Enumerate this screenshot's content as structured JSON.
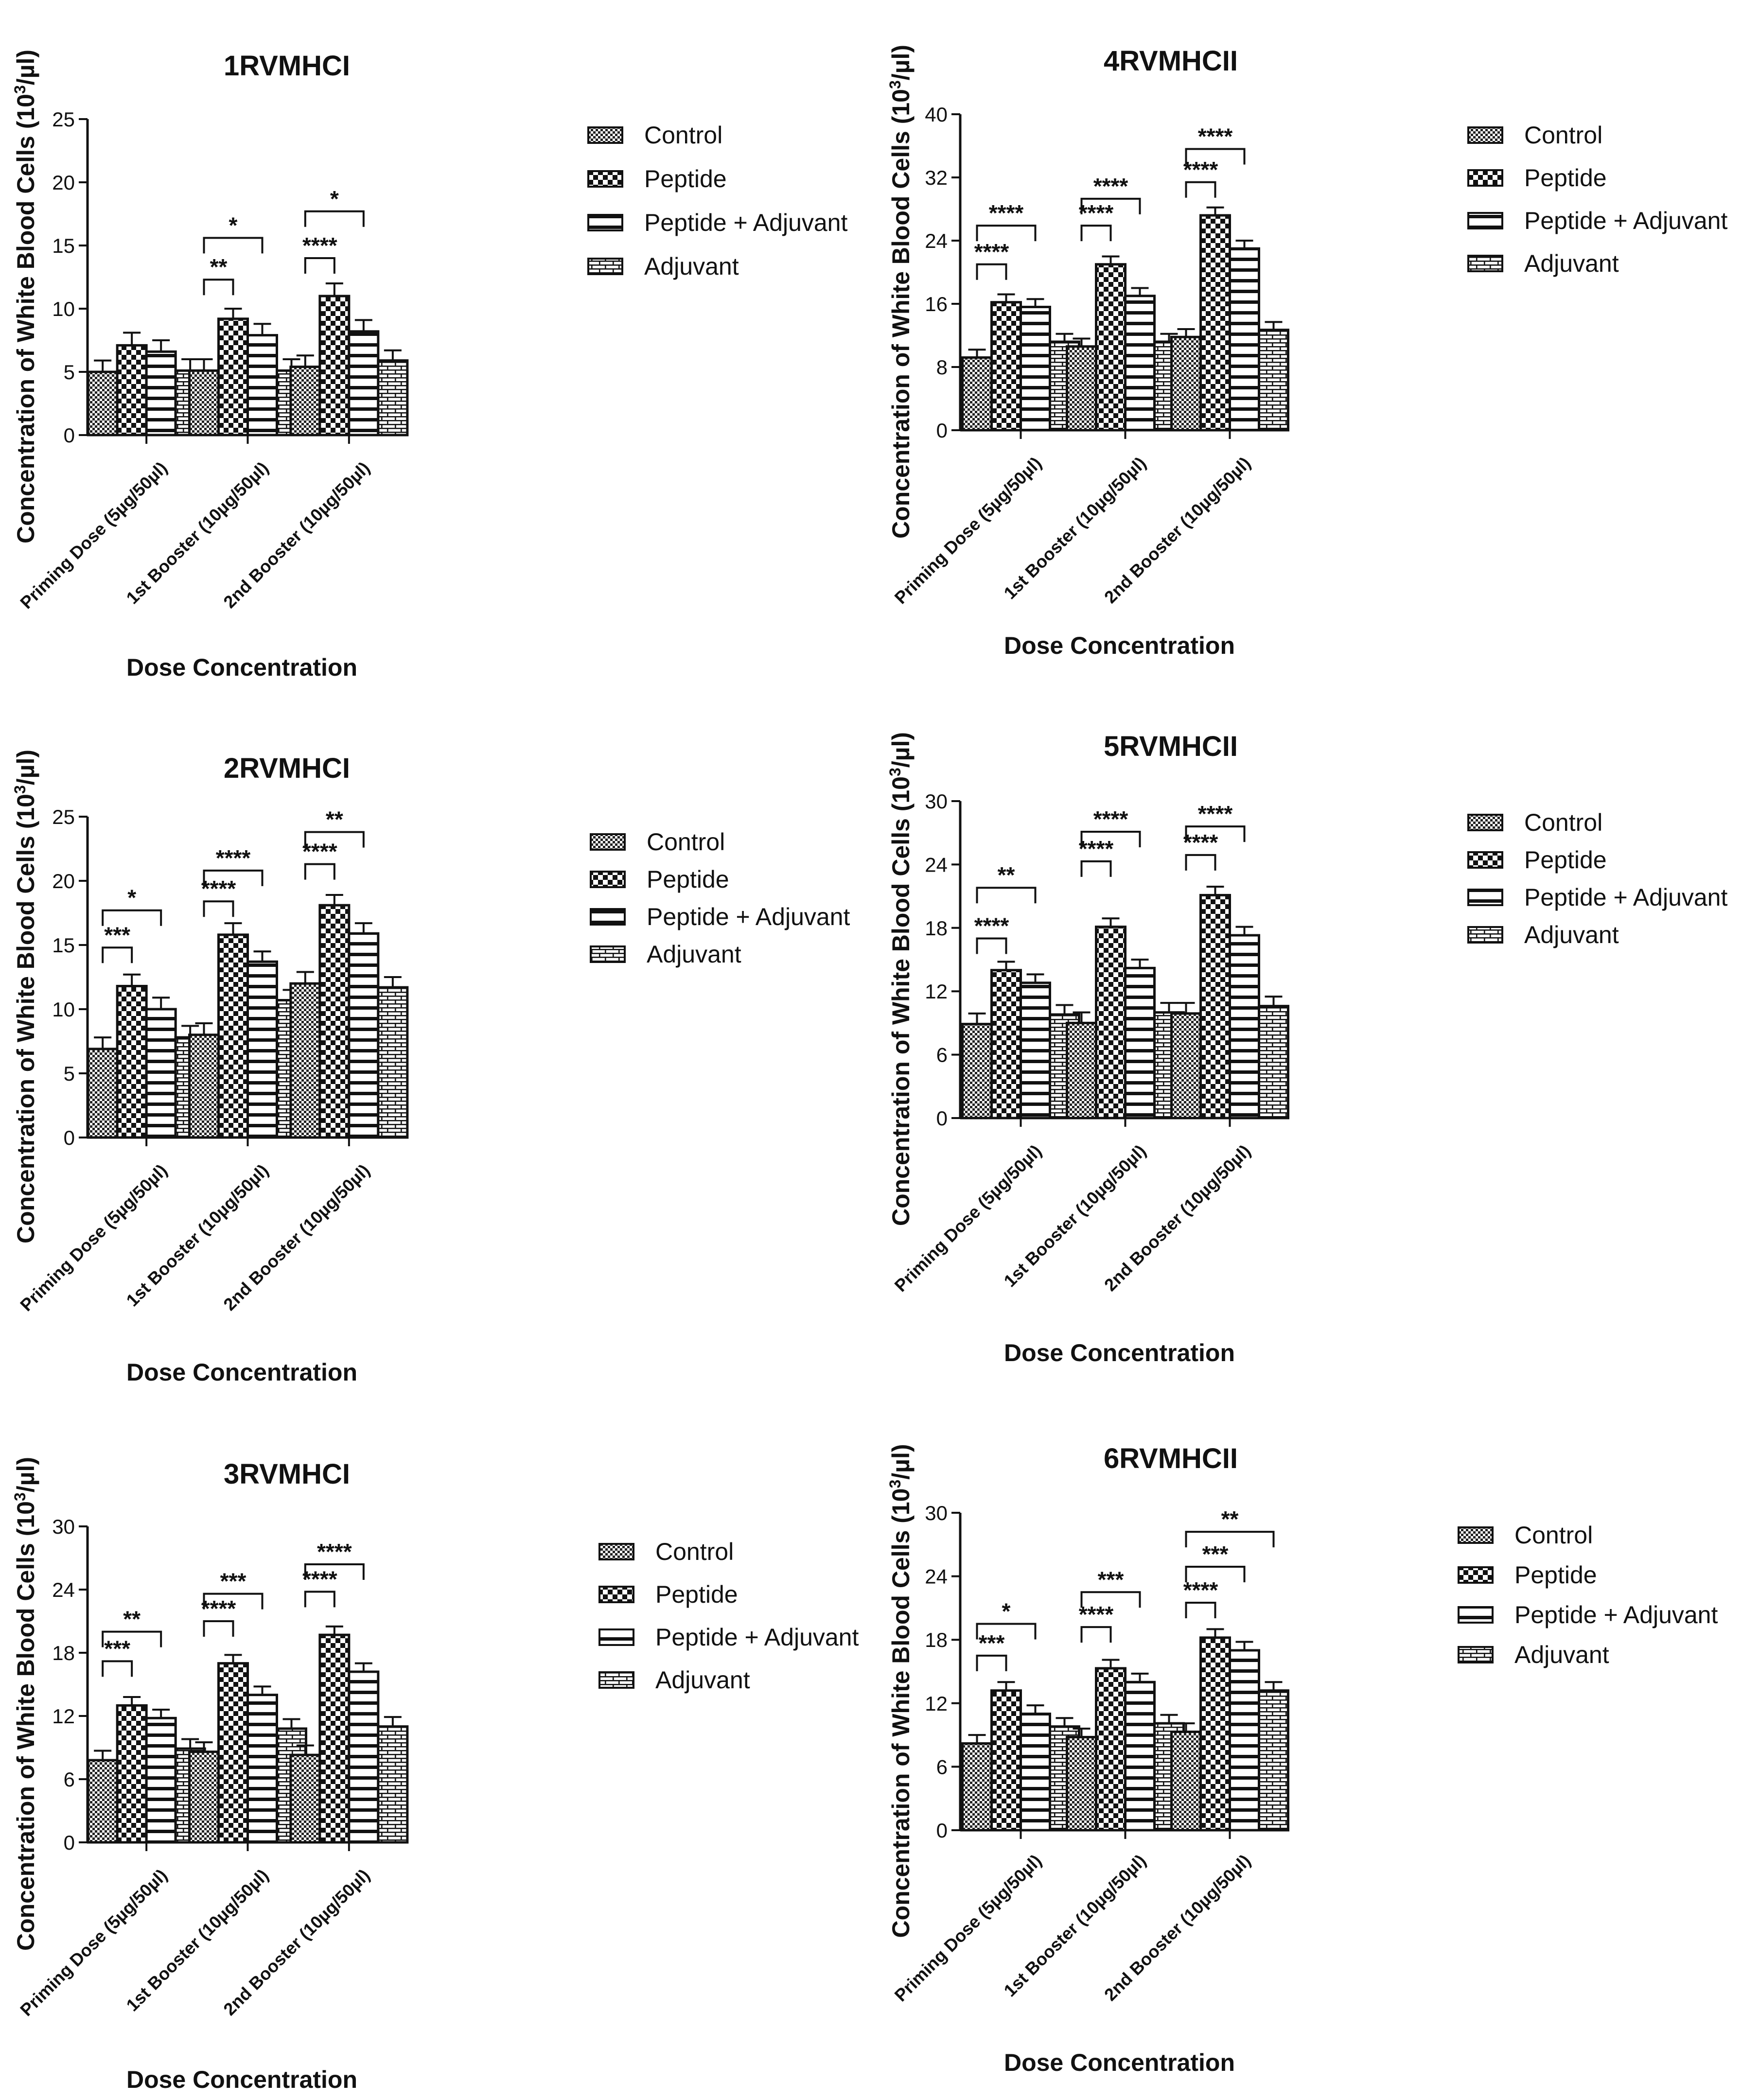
{
  "figure": {
    "legend_entries": [
      "Control",
      "Peptide",
      "Peptide + Adjuvant",
      "Adjuvant"
    ],
    "categories": [
      "Priming Dose (5µg/50µl)",
      "1st Booster (10µg/50µl)",
      "2nd Booster (10µg/50µl)"
    ],
    "ylabel_main": "Concentration of White Blood Cells (10",
    "ylabel_sup": "3",
    "ylabel_tail": "/µl)",
    "xlabel": "Dose  Concentration",
    "colors": {
      "axis": "#111111",
      "bar_fill": "#ffffff",
      "pattern": "#111111"
    }
  },
  "chart_data": [
    {
      "type": "bar",
      "title": "1RVMHCI",
      "xlabel": "Dose  Concentration",
      "ylabel": "Concentration of White Blood Cells (10³/µl)",
      "ylim": [
        0,
        25
      ],
      "yticks": [
        0,
        5,
        10,
        15,
        20,
        25
      ],
      "categories": [
        "Priming Dose (5µg/50µl)",
        "1st Booster (10µg/50µl)",
        "2nd Booster (10µg/50µl)"
      ],
      "series": [
        {
          "name": "Control",
          "values": [
            5.0,
            5.1,
            5.4
          ],
          "errors": [
            0.9,
            0.9,
            0.9
          ]
        },
        {
          "name": "Peptide",
          "values": [
            7.1,
            9.2,
            11.0
          ],
          "errors": [
            1.0,
            0.8,
            1.0
          ]
        },
        {
          "name": "Peptide + Adjuvant",
          "values": [
            6.6,
            7.9,
            8.2
          ],
          "errors": [
            0.9,
            0.9,
            0.9
          ]
        },
        {
          "name": "Adjuvant",
          "values": [
            5.1,
            5.1,
            5.9
          ],
          "errors": [
            0.9,
            0.9,
            0.8
          ]
        }
      ],
      "significance": [
        {
          "group": 1,
          "from": 0,
          "to": 1,
          "value": 12.3,
          "label": "**"
        },
        {
          "group": 1,
          "from": 0,
          "to": 2,
          "value": 15.6,
          "label": "*"
        },
        {
          "group": 2,
          "from": 0,
          "to": 1,
          "value": 14.0,
          "label": "****"
        },
        {
          "group": 2,
          "from": 0,
          "to": 2,
          "value": 17.7,
          "label": "*"
        }
      ]
    },
    {
      "type": "bar",
      "title": "4RVMHCII",
      "xlabel": "Dose  Concentration",
      "ylabel": "Concentration of White Blood Cells (10³/µl)",
      "ylim": [
        0,
        40
      ],
      "yticks": [
        0,
        8,
        16,
        24,
        32,
        40
      ],
      "categories": [
        "Priming Dose (5µg/50µl)",
        "1st Booster (10µg/50µl)",
        "2nd Booster (10µg/50µl)"
      ],
      "series": [
        {
          "name": "Control",
          "values": [
            9.2,
            10.6,
            11.8
          ],
          "errors": [
            1.0,
            1.0,
            1.0
          ]
        },
        {
          "name": "Peptide",
          "values": [
            16.2,
            21.0,
            27.2
          ],
          "errors": [
            1.0,
            1.0,
            1.0
          ]
        },
        {
          "name": "Peptide + Adjuvant",
          "values": [
            15.6,
            17.0,
            23.0
          ],
          "errors": [
            1.0,
            1.0,
            1.0
          ]
        },
        {
          "name": "Adjuvant",
          "values": [
            11.2,
            11.2,
            12.7
          ],
          "errors": [
            1.0,
            1.0,
            1.0
          ]
        }
      ],
      "significance": [
        {
          "group": 0,
          "from": 0,
          "to": 1,
          "value": 21.0,
          "label": "****"
        },
        {
          "group": 0,
          "from": 0,
          "to": 2,
          "value": 25.9,
          "label": "****"
        },
        {
          "group": 1,
          "from": 0,
          "to": 1,
          "value": 25.9,
          "label": "****"
        },
        {
          "group": 1,
          "from": 0,
          "to": 2,
          "value": 29.3,
          "label": "****"
        },
        {
          "group": 2,
          "from": 0,
          "to": 1,
          "value": 31.4,
          "label": "****"
        },
        {
          "group": 2,
          "from": 0,
          "to": 2,
          "value": 35.6,
          "label": "****"
        }
      ]
    },
    {
      "type": "bar",
      "title": "2RVMHCI",
      "xlabel": "Dose  Concentration",
      "ylabel": "Concentration of White Blood Cells (10³/µl)",
      "ylim": [
        0,
        25
      ],
      "yticks": [
        0,
        5,
        10,
        15,
        20,
        25
      ],
      "categories": [
        "Priming Dose (5µg/50µl)",
        "1st Booster (10µg/50µl)",
        "2nd Booster (10µg/50µl)"
      ],
      "series": [
        {
          "name": "Control",
          "values": [
            6.9,
            8.0,
            12.0
          ],
          "errors": [
            0.9,
            0.9,
            0.9
          ]
        },
        {
          "name": "Peptide",
          "values": [
            11.8,
            15.8,
            18.1
          ],
          "errors": [
            0.9,
            0.9,
            0.8
          ]
        },
        {
          "name": "Peptide + Adjuvant",
          "values": [
            10.0,
            13.7,
            15.9
          ],
          "errors": [
            0.9,
            0.8,
            0.8
          ]
        },
        {
          "name": "Adjuvant",
          "values": [
            7.8,
            10.7,
            11.7
          ],
          "errors": [
            0.9,
            0.8,
            0.8
          ]
        }
      ],
      "significance": [
        {
          "group": 0,
          "from": 0,
          "to": 1,
          "value": 14.8,
          "label": "***"
        },
        {
          "group": 0,
          "from": 0,
          "to": 2,
          "value": 17.7,
          "label": "*"
        },
        {
          "group": 1,
          "from": 0,
          "to": 1,
          "value": 18.4,
          "label": "****"
        },
        {
          "group": 1,
          "from": 0,
          "to": 2,
          "value": 20.8,
          "label": "****"
        },
        {
          "group": 2,
          "from": 0,
          "to": 1,
          "value": 21.3,
          "label": "****"
        },
        {
          "group": 2,
          "from": 0,
          "to": 2,
          "value": 23.8,
          "label": "**"
        }
      ]
    },
    {
      "type": "bar",
      "title": "5RVMHCII",
      "xlabel": "Dose  Concentration",
      "ylabel": "Concentration of White Blood Cells (10³/µl)",
      "ylim": [
        0,
        30
      ],
      "yticks": [
        0,
        6,
        12,
        18,
        24,
        30
      ],
      "categories": [
        "Priming Dose (5µg/50µl)",
        "1st Booster (10µg/50µl)",
        "2nd Booster (10µg/50µl)"
      ],
      "series": [
        {
          "name": "Control",
          "values": [
            8.9,
            9.0,
            9.9
          ],
          "errors": [
            1.0,
            1.0,
            1.0
          ]
        },
        {
          "name": "Peptide",
          "values": [
            14.0,
            18.1,
            21.1
          ],
          "errors": [
            0.8,
            0.8,
            0.8
          ]
        },
        {
          "name": "Peptide + Adjuvant",
          "values": [
            12.8,
            14.2,
            17.3
          ],
          "errors": [
            0.8,
            0.8,
            0.8
          ]
        },
        {
          "name": "Adjuvant",
          "values": [
            9.8,
            10.0,
            10.6
          ],
          "errors": [
            0.9,
            0.9,
            0.9
          ]
        }
      ],
      "significance": [
        {
          "group": 0,
          "from": 0,
          "to": 1,
          "value": 17.0,
          "label": "****"
        },
        {
          "group": 0,
          "from": 0,
          "to": 2,
          "value": 21.8,
          "label": "**"
        },
        {
          "group": 1,
          "from": 0,
          "to": 1,
          "value": 24.3,
          "label": "****"
        },
        {
          "group": 1,
          "from": 0,
          "to": 2,
          "value": 27.1,
          "label": "****"
        },
        {
          "group": 2,
          "from": 0,
          "to": 1,
          "value": 24.9,
          "label": "****"
        },
        {
          "group": 2,
          "from": 0,
          "to": 2,
          "value": 27.6,
          "label": "****"
        }
      ]
    },
    {
      "type": "bar",
      "title": "3RVMHCI",
      "xlabel": "Dose  Concentration",
      "ylabel": "Concentration of White Blood Cells (10³/µl)",
      "ylim": [
        0,
        30
      ],
      "yticks": [
        0,
        6,
        12,
        18,
        24,
        30
      ],
      "categories": [
        "Priming Dose (5µg/50µl)",
        "1st Booster (10µg/50µl)",
        "2nd Booster (10µg/50µl)"
      ],
      "series": [
        {
          "name": "Control",
          "values": [
            7.8,
            8.6,
            8.3
          ],
          "errors": [
            0.9,
            0.9,
            0.9
          ]
        },
        {
          "name": "Peptide",
          "values": [
            13.0,
            17.0,
            19.7
          ],
          "errors": [
            0.8,
            0.8,
            0.8
          ]
        },
        {
          "name": "Peptide + Adjuvant",
          "values": [
            11.8,
            14.0,
            16.2
          ],
          "errors": [
            0.8,
            0.8,
            0.8
          ]
        },
        {
          "name": "Adjuvant",
          "values": [
            8.9,
            10.8,
            11.0
          ],
          "errors": [
            0.9,
            0.9,
            0.9
          ]
        }
      ],
      "significance": [
        {
          "group": 0,
          "from": 0,
          "to": 1,
          "value": 17.2,
          "label": "***"
        },
        {
          "group": 0,
          "from": 0,
          "to": 2,
          "value": 20.0,
          "label": "**"
        },
        {
          "group": 1,
          "from": 0,
          "to": 1,
          "value": 21.0,
          "label": "****"
        },
        {
          "group": 1,
          "from": 0,
          "to": 2,
          "value": 23.6,
          "label": "***"
        },
        {
          "group": 2,
          "from": 0,
          "to": 1,
          "value": 23.8,
          "label": "****"
        },
        {
          "group": 2,
          "from": 0,
          "to": 2,
          "value": 26.4,
          "label": "****"
        }
      ]
    },
    {
      "type": "bar",
      "title": "6RVMHCII",
      "xlabel": "Dose  Concentration",
      "ylabel": "Concentration of White Blood Cells (10³/µl)",
      "ylim": [
        0,
        30
      ],
      "yticks": [
        0,
        6,
        12,
        18,
        24,
        30
      ],
      "categories": [
        "Priming Dose (5µg/50µl)",
        "1st Booster (10µg/50µl)",
        "2nd Booster (10µg/50µl)"
      ],
      "series": [
        {
          "name": "Control",
          "values": [
            8.2,
            8.8,
            9.3
          ],
          "errors": [
            0.8,
            0.8,
            0.8
          ]
        },
        {
          "name": "Peptide",
          "values": [
            13.2,
            15.3,
            18.2
          ],
          "errors": [
            0.8,
            0.8,
            0.8
          ]
        },
        {
          "name": "Peptide + Adjuvant",
          "values": [
            11.0,
            14.0,
            17.0
          ],
          "errors": [
            0.8,
            0.8,
            0.8
          ]
        },
        {
          "name": "Adjuvant",
          "values": [
            9.8,
            10.1,
            13.2
          ],
          "errors": [
            0.8,
            0.8,
            0.8
          ]
        }
      ],
      "significance": [
        {
          "group": 0,
          "from": 0,
          "to": 1,
          "value": 16.5,
          "label": "***"
        },
        {
          "group": 0,
          "from": 0,
          "to": 2,
          "value": 19.5,
          "label": "*"
        },
        {
          "group": 1,
          "from": 0,
          "to": 1,
          "value": 19.2,
          "label": "****"
        },
        {
          "group": 1,
          "from": 0,
          "to": 2,
          "value": 22.5,
          "label": "***"
        },
        {
          "group": 2,
          "from": 0,
          "to": 1,
          "value": 21.5,
          "label": "****"
        },
        {
          "group": 2,
          "from": 0,
          "to": 2,
          "value": 24.9,
          "label": "***"
        },
        {
          "group": 2,
          "from": 0,
          "to": 3,
          "value": 28.2,
          "label": "**"
        }
      ]
    }
  ]
}
